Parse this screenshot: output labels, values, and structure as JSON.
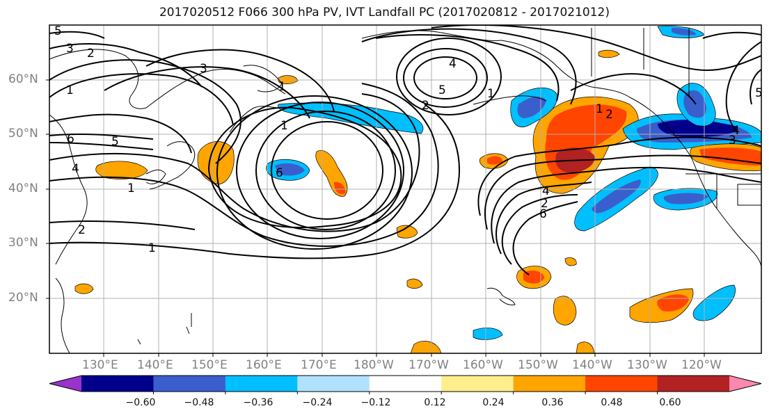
{
  "title": "2017020512 F066 300 hPa PV, IVT Landfall PC (2017020812 - 2017021012)",
  "map": {
    "lat_ticks": [
      "60°N",
      "50°N",
      "40°N",
      "30°N",
      "20°N"
    ],
    "lon_ticks": [
      "130°E",
      "140°E",
      "150°E",
      "160°E",
      "170°E",
      "180°W",
      "170°W",
      "160°W",
      "150°W",
      "140°W",
      "130°W",
      "120°W"
    ],
    "contour_labels": [
      "5",
      "3",
      "2",
      "1",
      "3",
      "1",
      "6",
      "5",
      "4",
      "1",
      "2",
      "1",
      "1",
      "6",
      "4",
      "5",
      "2",
      "1",
      "1",
      "2",
      "4",
      "2",
      "6",
      "4",
      "3",
      "5"
    ]
  },
  "colorbar": {
    "colors": [
      "#9933cc",
      "#00008b",
      "#3a5fcd",
      "#00bfff",
      "#b0e2ff",
      "#ffffff",
      "#ffee8c",
      "#ffa500",
      "#ff4500",
      "#b22222",
      "#ff88b0"
    ],
    "tick_labels": [
      "−0.60",
      "−0.48",
      "−0.36",
      "−0.24",
      "−0.12",
      "0.12",
      "0.24",
      "0.36",
      "0.48",
      "0.60"
    ]
  }
}
